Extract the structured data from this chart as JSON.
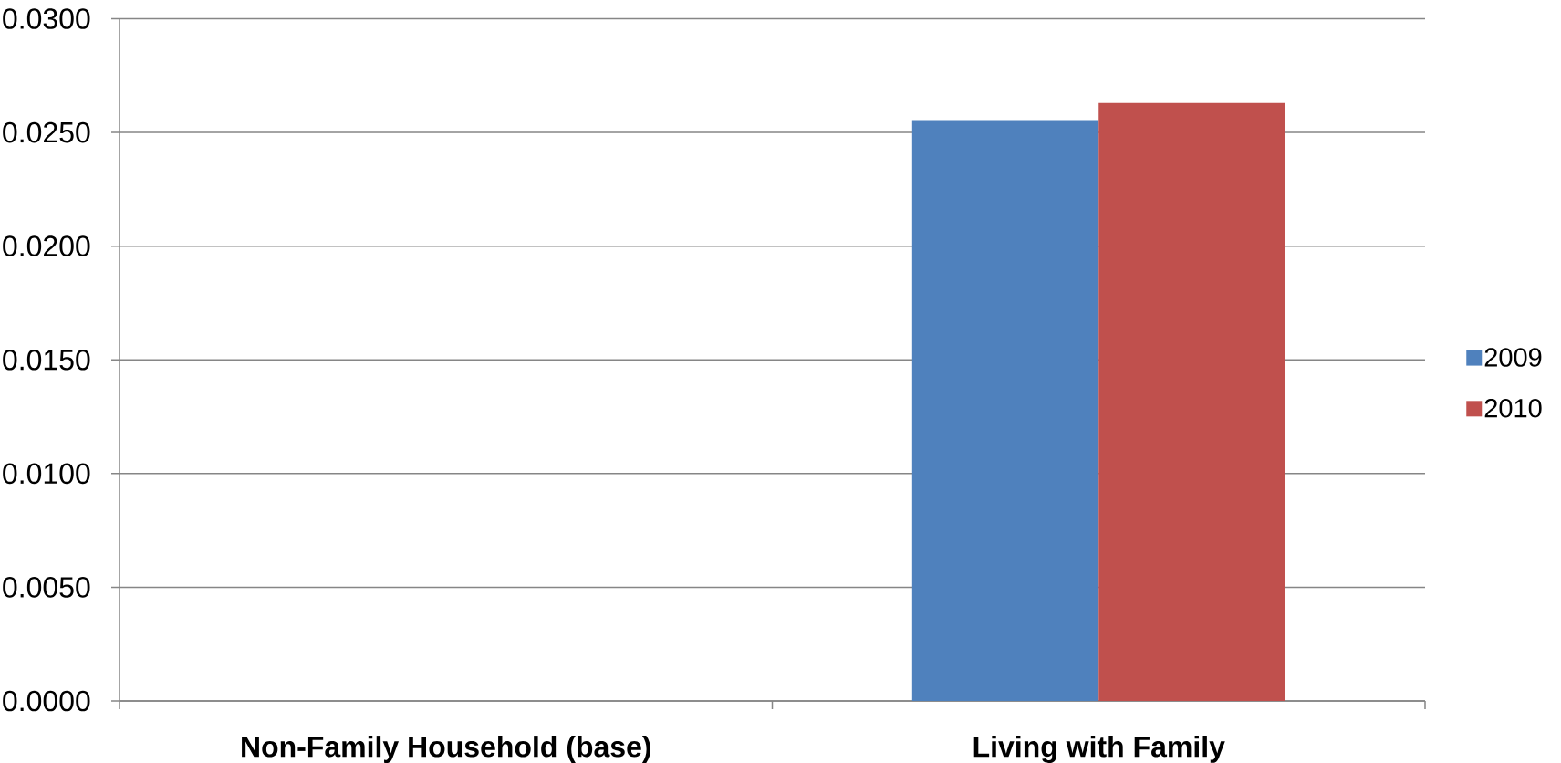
{
  "chart_data": {
    "type": "bar",
    "categories": [
      "Non-Family Household (base)",
      "Living with Family"
    ],
    "series": [
      {
        "name": "2009",
        "color": "#4f81bd",
        "values": [
          0,
          0.0255
        ]
      },
      {
        "name": "2010",
        "color": "#c0504d",
        "values": [
          0,
          0.0263
        ]
      }
    ],
    "ylim": [
      0,
      0.03
    ],
    "yticks": [
      {
        "value": 0,
        "label": "0.0000"
      },
      {
        "value": 0.005,
        "label": "0.0050"
      },
      {
        "value": 0.01,
        "label": "0.0100"
      },
      {
        "value": 0.015,
        "label": "0.0150"
      },
      {
        "value": 0.02,
        "label": "0.0200"
      },
      {
        "value": 0.025,
        "label": "0.0250"
      },
      {
        "value": 0.03,
        "label": "0.0300"
      }
    ],
    "grid": "y",
    "legend": "right"
  }
}
